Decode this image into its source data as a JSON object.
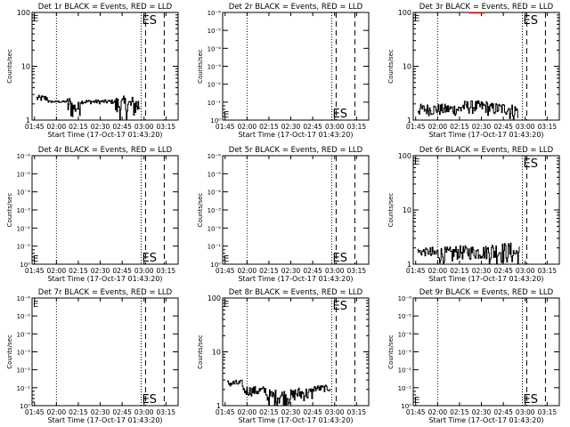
{
  "figure": {
    "time_axis": {
      "label": "Start Time (17-Oct-17 01:43:20)",
      "tick_labels": [
        "01:45",
        "02:00",
        "02:15",
        "02:30",
        "02:45",
        "03:00",
        "03:15"
      ],
      "tick_minutes": [
        1.67,
        16.67,
        31.67,
        46.67,
        61.67,
        76.67,
        91.67
      ],
      "range_minutes": [
        0,
        100
      ],
      "dotted_markers_minutes": [
        16.67,
        74.7
      ],
      "dashed_markers_minutes": [
        77.7,
        90.5
      ]
    },
    "colors": {
      "events": "#000000",
      "lld": "#ff0000"
    },
    "annotation": "ES",
    "ylabel": "Counts/sec"
  },
  "chart_data": [
    {
      "type": "line",
      "title": "Det 1r BLACK = Events, RED = LLD",
      "ylabel": "Counts/sec",
      "yscale": "log",
      "ylim": [
        1,
        100
      ],
      "tick_labels": [
        "1",
        "10",
        "100"
      ],
      "es_position": "top",
      "has_data": true,
      "series": [
        {
          "name": "Events",
          "color": "#000000",
          "segments": [
            [
              3,
              11,
              2.2,
              2.9
            ],
            [
              11,
              24,
              2.1,
              2.3
            ],
            [
              24,
              28,
              1,
              2.8
            ],
            [
              28,
              33,
              1.2,
              2.2
            ],
            [
              33,
              57,
              2,
              2.4
            ],
            [
              57,
              74,
              1,
              2.8
            ]
          ]
        }
      ]
    },
    {
      "type": "line",
      "title": "Det 2r BLACK = Events, RED = LLD",
      "ylabel": "Counts/sec",
      "yscale": "log",
      "ylim": [
        0.8,
        1.25
      ],
      "tick_labels": [
        "10⁰",
        "10⁻¹",
        "10⁻²",
        "10⁻³",
        "10⁻⁴",
        "10⁻⁵",
        "10⁻⁶"
      ],
      "es_position": "bottom",
      "has_data": false,
      "series": []
    },
    {
      "type": "line",
      "title": "Det 3r BLACK = Events, RED = LLD",
      "ylabel": "Counts/sec",
      "yscale": "log",
      "ylim": [
        1,
        100
      ],
      "tick_labels": [
        "1",
        "10",
        "100"
      ],
      "es_position": "top",
      "has_data": true,
      "series": [
        {
          "name": "Events",
          "color": "#000000",
          "segments": [
            [
              3,
              33,
              1.2,
              2
            ],
            [
              33,
              51,
              1.3,
              2.3
            ],
            [
              51,
              66,
              1.2,
              2.1
            ],
            [
              66,
              72,
              1,
              2
            ]
          ]
        },
        {
          "name": "LLD",
          "color": "#ff0000",
          "flat": [
            [
              38,
              49,
              98
            ]
          ]
        }
      ]
    },
    {
      "type": "line",
      "title": "Det 4r BLACK = Events, RED = LLD",
      "ylabel": "Counts/sec",
      "yscale": "log",
      "ylim": [
        0.8,
        1.25
      ],
      "tick_labels": [
        "10⁰",
        "10⁻¹",
        "10⁻²",
        "10⁻³",
        "10⁻⁴",
        "10⁻⁵",
        "10⁻⁶"
      ],
      "es_position": "bottom",
      "has_data": false,
      "series": []
    },
    {
      "type": "line",
      "title": "Det 5r BLACK = Events, RED = LLD",
      "ylabel": "Counts/sec",
      "yscale": "log",
      "ylim": [
        0.8,
        1.25
      ],
      "tick_labels": [
        "10⁰",
        "10⁻¹",
        "10⁻²",
        "10⁻³",
        "10⁻⁴",
        "10⁻⁵",
        "10⁻⁶"
      ],
      "es_position": "bottom",
      "has_data": false,
      "series": []
    },
    {
      "type": "line",
      "title": "Det 6r BLACK = Events, RED = LLD",
      "ylabel": "Counts/sec",
      "yscale": "log",
      "ylim": [
        1,
        100
      ],
      "tick_labels": [
        "1",
        "10",
        "100"
      ],
      "es_position": "top",
      "has_data": true,
      "series": [
        {
          "name": "Events",
          "color": "#000000",
          "segments": [
            [
              3,
              11,
              1.4,
              2
            ],
            [
              11,
              28,
              1,
              2.1
            ],
            [
              28,
              51,
              1.2,
              2.2
            ],
            [
              51,
              67,
              1,
              2.5
            ],
            [
              67,
              73,
              1,
              2.2
            ]
          ]
        }
      ]
    },
    {
      "type": "line",
      "title": "Det 7r BLACK = Events, RED = LLD",
      "ylabel": "Counts/sec",
      "yscale": "log",
      "ylim": [
        0.8,
        1.25
      ],
      "tick_labels": [
        "10⁰",
        "10⁻¹",
        "10⁻²",
        "10⁻³",
        "10⁻⁴",
        "10⁻⁵",
        "10⁻⁶"
      ],
      "es_position": "bottom",
      "has_data": false,
      "series": []
    },
    {
      "type": "line",
      "title": "Det 8r BLACK = Events, RED = LLD",
      "ylabel": "Counts/sec",
      "yscale": "log",
      "ylim": [
        1,
        100
      ],
      "tick_labels": [
        "1",
        "10",
        "100"
      ],
      "es_position": "top",
      "has_data": true,
      "series": [
        {
          "name": "Events",
          "color": "#000000",
          "segments": [
            [
              3,
              14,
              2.2,
              3
            ],
            [
              14,
              30,
              1.5,
              2.3
            ],
            [
              30,
              49,
              1,
              2
            ],
            [
              49,
              62,
              1.2,
              2.2
            ],
            [
              62,
              74,
              1.8,
              2.4
            ]
          ]
        }
      ]
    },
    {
      "type": "line",
      "title": "Det 9r BLACK = Events, RED = LLD",
      "ylabel": "Counts/sec",
      "yscale": "log",
      "ylim": [
        0.8,
        1.25
      ],
      "tick_labels": [
        "10⁰",
        "10⁻¹",
        "10⁻²",
        "10⁻³",
        "10⁻⁴",
        "10⁻⁵",
        "10⁻⁶"
      ],
      "es_position": "bottom",
      "has_data": false,
      "series": []
    }
  ]
}
